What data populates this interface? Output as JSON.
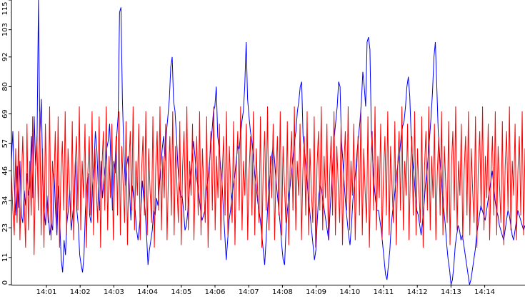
{
  "chart_data": {
    "type": "line",
    "title": "",
    "xlabel": "",
    "ylabel": "",
    "x_ticks": [
      "14:01",
      "14:02",
      "14:03",
      "14:04",
      "14:05",
      "14:06",
      "14:07",
      "14:08",
      "14:09",
      "14:10",
      "14:11",
      "14:12",
      "14:13",
      "14:14"
    ],
    "y_ticks": [
      0,
      11,
      23,
      34,
      46,
      57,
      69,
      80,
      92,
      103,
      115
    ],
    "ylim": [
      0,
      115
    ],
    "grid": false,
    "legend": "none",
    "series": [
      {
        "color": "#0000ff",
        "values": [
          50,
          62,
          40,
          28,
          48,
          31,
          50,
          28,
          25,
          38,
          32,
          45,
          36,
          40,
          60,
          35,
          68,
          48,
          58,
          115,
          60,
          75,
          44,
          30,
          24,
          36,
          28,
          20,
          25,
          22,
          45,
          30,
          20,
          40,
          25,
          10,
          5,
          18,
          12,
          25,
          30,
          38,
          22,
          28,
          34,
          50,
          30,
          24,
          12,
          8,
          5,
          12,
          30,
          40,
          45,
          28,
          25,
          40,
          48,
          62,
          55,
          40,
          30,
          50,
          35,
          42,
          48,
          55,
          58,
          65,
          48,
          30,
          50,
          45,
          60,
          68,
          110,
          112,
          75,
          55,
          40,
          48,
          52,
          38,
          26,
          40,
          35,
          30,
          22,
          18,
          24,
          30,
          42,
          35,
          30,
          20,
          8,
          14,
          18,
          22,
          30,
          28,
          35,
          32,
          40,
          48,
          55,
          60,
          50,
          62,
          68,
          75,
          88,
          92,
          74,
          70,
          60,
          48,
          40,
          35,
          36,
          30,
          22,
          24,
          30,
          38,
          45,
          50,
          58,
          52,
          44,
          40,
          35,
          30,
          26,
          28,
          30,
          38,
          42,
          48,
          55,
          62,
          70,
          72,
          80,
          60,
          55,
          48,
          42,
          30,
          20,
          10,
          18,
          26,
          30,
          36,
          40,
          44,
          50,
          56,
          55,
          60,
          66,
          70,
          80,
          98,
          75,
          68,
          62,
          58,
          52,
          45,
          40,
          34,
          30,
          26,
          20,
          14,
          8,
          18,
          30,
          40,
          46,
          52,
          56,
          50,
          42,
          36,
          30,
          24,
          16,
          10,
          8,
          22,
          30,
          36,
          40,
          46,
          52,
          58,
          62,
          70,
          74,
          80,
          82,
          60,
          54,
          48,
          40,
          34,
          28,
          22,
          16,
          10,
          14,
          26,
          36,
          40,
          38,
          34,
          30,
          26,
          22,
          18,
          30,
          40,
          50,
          60,
          66,
          72,
          82,
          80,
          58,
          50,
          40,
          32,
          26,
          20,
          16,
          24,
          34,
          40,
          46,
          54,
          60,
          66,
          74,
          86,
          80,
          72,
          98,
          100,
          95,
          62,
          50,
          40,
          34,
          30,
          30,
          26,
          22,
          16,
          10,
          4,
          2,
          8,
          14,
          24,
          30,
          34,
          40,
          46,
          50,
          54,
          60,
          64,
          66,
          72,
          80,
          84,
          76,
          60,
          50,
          44,
          36,
          30,
          28,
          24,
          20,
          26,
          32,
          40,
          46,
          52,
          60,
          68,
          78,
          92,
          98,
          80,
          62,
          52,
          44,
          36,
          30,
          24,
          16,
          10,
          6,
          0,
          2,
          8,
          16,
          20,
          24,
          22,
          18,
          20,
          16,
          12,
          8,
          4,
          0,
          2,
          6,
          10,
          14,
          20,
          24,
          28,
          32,
          30,
          28,
          26,
          30,
          34,
          38,
          42,
          46,
          40,
          34,
          30,
          28,
          24,
          22,
          20,
          18,
          22,
          26,
          30,
          28,
          24,
          20,
          18,
          22,
          26,
          30,
          28,
          26,
          24,
          22,
          24
        ]
      },
      {
        "color": "#ff0000",
        "values": [
          45,
          30,
          20,
          55,
          25,
          62,
          18,
          40,
          60,
          35,
          15,
          65,
          22,
          50,
          28,
          68,
          12,
          45,
          60,
          30,
          70,
          20,
          55,
          15,
          65,
          35,
          25,
          72,
          18,
          50,
          40,
          62,
          22,
          68,
          15,
          45,
          58,
          30,
          70,
          20,
          55,
          40,
          25,
          66,
          18,
          48,
          60,
          30,
          72,
          22,
          50,
          35,
          65,
          15,
          45,
          60,
          28,
          70,
          20,
          55,
          38,
          25,
          68,
          15,
          48,
          62,
          30,
          72,
          22,
          52,
          35,
          65,
          18,
          45,
          60,
          28,
          70,
          20,
          56,
          40,
          25,
          66,
          16,
          48,
          62,
          30,
          72,
          22,
          50,
          36,
          65,
          18,
          46,
          60,
          28,
          70,
          20,
          55,
          38,
          25,
          68,
          15,
          48,
          62,
          30,
          72,
          22,
          52,
          35,
          65,
          18,
          45,
          60,
          28,
          70,
          20,
          56,
          40,
          25,
          66,
          16,
          48,
          62,
          30,
          72,
          22,
          50,
          36,
          65,
          18,
          46,
          60,
          28,
          70,
          20,
          55,
          38,
          25,
          68,
          15,
          48,
          62,
          30,
          72,
          22,
          52,
          35,
          65,
          18,
          45,
          60,
          28,
          70,
          20,
          56,
          40,
          25,
          66,
          16,
          48,
          62,
          30,
          72,
          22,
          50,
          36,
          65,
          18,
          46,
          60,
          28,
          70,
          20,
          55,
          38,
          25,
          68,
          15,
          48,
          62,
          30,
          72,
          22,
          52,
          35,
          65,
          18,
          45,
          60,
          28,
          70,
          20,
          56,
          40,
          25,
          66,
          16,
          48,
          62,
          30,
          72,
          22,
          50,
          36,
          65,
          18,
          46,
          60,
          28,
          70,
          20,
          55,
          38,
          25,
          68,
          15,
          48,
          62,
          30,
          72,
          22,
          52,
          35,
          65,
          18,
          45,
          60,
          28,
          70,
          20,
          56,
          40,
          25,
          66,
          16,
          48,
          62,
          30,
          72,
          22,
          50,
          36,
          65,
          18,
          46,
          60,
          28,
          70,
          20,
          55,
          38,
          25,
          68,
          15,
          48,
          62,
          30,
          72,
          22,
          52,
          35,
          65,
          18,
          45,
          60,
          28,
          70,
          20,
          56,
          40,
          25,
          66,
          16,
          48,
          62,
          30,
          72,
          22,
          50,
          36,
          65,
          18,
          46,
          60,
          28,
          70,
          20,
          55,
          38,
          25,
          68,
          15,
          48,
          62,
          30,
          72,
          22,
          52,
          35,
          65,
          18,
          45,
          60,
          28,
          70,
          20,
          56,
          40,
          25,
          66,
          16,
          48,
          62,
          30,
          72,
          22,
          50,
          36,
          65,
          18,
          46,
          60,
          28,
          70,
          20,
          55,
          38,
          25,
          68,
          15,
          48,
          62,
          30,
          72,
          22,
          52,
          35,
          65,
          18,
          45,
          60,
          28,
          70,
          20,
          56,
          40,
          25,
          66,
          16,
          48,
          62,
          30,
          72,
          22,
          50,
          36,
          65,
          18,
          46,
          60,
          28,
          70,
          20,
          55
        ]
      }
    ]
  }
}
